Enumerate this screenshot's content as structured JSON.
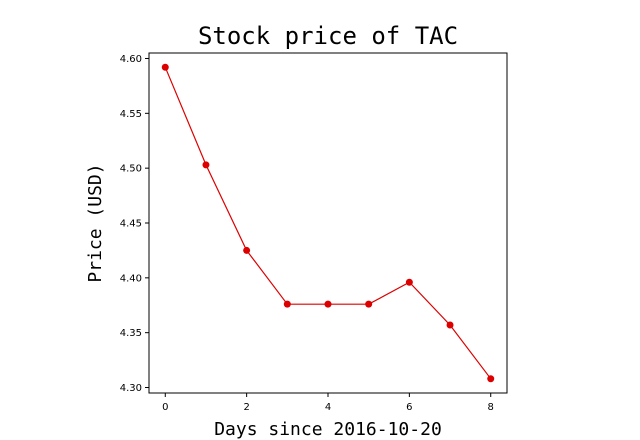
{
  "chart_data": {
    "type": "line",
    "title": "Stock price of TAC",
    "xlabel": "Days since 2016-10-20",
    "ylabel": "Price (USD)",
    "x": [
      0,
      1,
      2,
      3,
      4,
      5,
      6,
      7,
      8
    ],
    "series": [
      {
        "values": [
          4.592,
          4.503,
          4.425,
          4.376,
          4.376,
          4.376,
          4.396,
          4.357,
          4.308
        ]
      }
    ],
    "xlim": [
      -0.4,
      8.4
    ],
    "ylim": [
      4.295,
      4.605
    ],
    "xticks": [
      0,
      2,
      4,
      6,
      8
    ],
    "xtick_labels": [
      "0",
      "2",
      "4",
      "6",
      "8"
    ],
    "yticks": [
      4.3,
      4.35,
      4.4,
      4.45,
      4.5,
      4.55,
      4.6
    ],
    "ytick_labels": [
      "4.30",
      "4.35",
      "4.40",
      "4.45",
      "4.50",
      "4.55",
      "4.60"
    ],
    "grid": false,
    "legend": "none",
    "line_color": "#dd0000",
    "marker_color": "#dd0000"
  }
}
